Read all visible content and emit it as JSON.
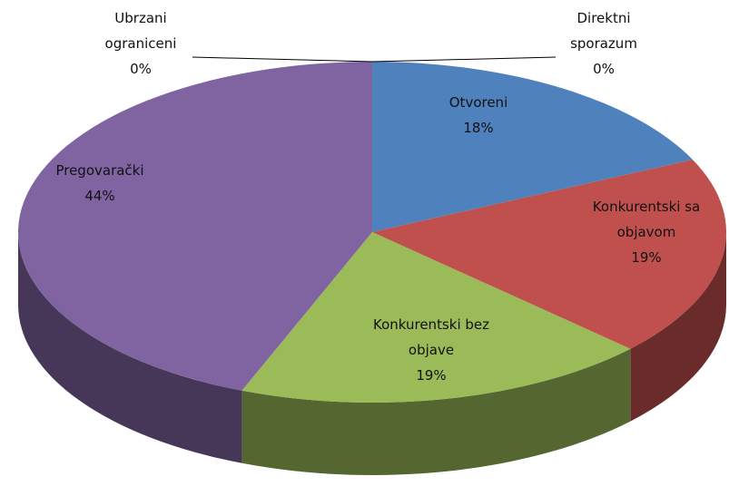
{
  "chart_data": {
    "type": "pie3d",
    "categories": [
      "Otvoreni",
      "Konkurentski sa objavom",
      "Konkurentski bez objave",
      "Pregovarački",
      "Ubrzani ograniceni",
      "Direktni sporazum"
    ],
    "values": [
      18,
      19,
      19,
      44,
      0,
      0
    ],
    "value_labels": [
      "18%",
      "19%",
      "19%",
      "44%",
      "0%",
      "0%"
    ],
    "colors": [
      "#4f81bd",
      "#c0504d",
      "#9bbb59",
      "#8064a2",
      "#4bacc6",
      "#f79646"
    ]
  }
}
